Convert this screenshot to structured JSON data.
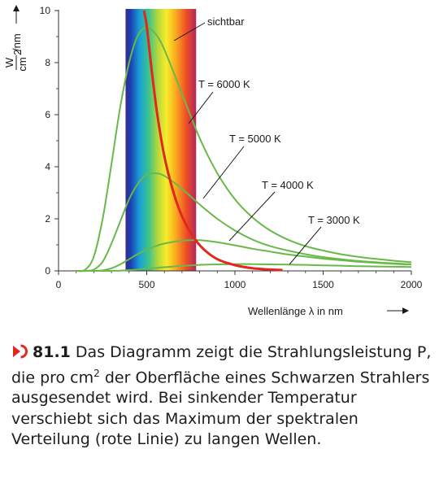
{
  "chart_data": {
    "type": "line",
    "x": [
      100,
      150,
      200,
      250,
      300,
      350,
      400,
      450,
      500,
      550,
      600,
      700,
      800,
      900,
      1000,
      1100,
      1200,
      1300,
      1400,
      1500,
      1600,
      1700,
      1800,
      1900,
      2000
    ],
    "series": [
      {
        "name": "T = 6000 K",
        "values": [
          0,
          0.04,
          0.55,
          2.0,
          4.1,
          6.3,
          8.0,
          9.05,
          9.35,
          9.1,
          8.5,
          6.8,
          5.1,
          3.75,
          2.75,
          2.05,
          1.55,
          1.2,
          0.95,
          0.78,
          0.64,
          0.54,
          0.46,
          0.39,
          0.33
        ]
      },
      {
        "name": "T = 5000 K",
        "values": [
          0,
          0,
          0.05,
          0.35,
          1.05,
          1.9,
          2.75,
          3.35,
          3.7,
          3.75,
          3.65,
          3.15,
          2.55,
          2.0,
          1.55,
          1.2,
          0.95,
          0.78,
          0.64,
          0.53,
          0.45,
          0.38,
          0.33,
          0.29,
          0.25
        ]
      },
      {
        "name": "T = 4000 K",
        "values": [
          0,
          0,
          0,
          0.02,
          0.1,
          0.25,
          0.45,
          0.65,
          0.82,
          0.95,
          1.05,
          1.16,
          1.18,
          1.1,
          0.98,
          0.85,
          0.74,
          0.63,
          0.55,
          0.47,
          0.41,
          0.35,
          0.31,
          0.27,
          0.24
        ]
      },
      {
        "name": "T = 3000 K",
        "values": [
          0,
          0,
          0,
          0,
          0,
          0.01,
          0.03,
          0.05,
          0.08,
          0.11,
          0.14,
          0.19,
          0.23,
          0.25,
          0.26,
          0.26,
          0.25,
          0.24,
          0.23,
          0.21,
          0.2,
          0.18,
          0.17,
          0.16,
          0.15
        ]
      }
    ],
    "max_curve": {
      "x": [
        484,
        500,
        530,
        560,
        600,
        650,
        700,
        760,
        820,
        900,
        1000,
        1100,
        1200,
        1270
      ],
      "values": [
        10,
        9.4,
        7.6,
        6.0,
        4.4,
        3.05,
        2.1,
        1.35,
        0.85,
        0.45,
        0.22,
        0.1,
        0.05,
        0.03
      ]
    },
    "visible_band": {
      "from": 380,
      "to": 780,
      "label": "sichtbar"
    },
    "xlim": [
      0,
      2000
    ],
    "ylim": [
      0,
      10
    ],
    "xticks": [
      0,
      500,
      1000,
      1500,
      2000
    ],
    "yticks": [
      0,
      2,
      4,
      6,
      8,
      10
    ],
    "xlabel": "Wellenlänge λ in nm",
    "ylabel_num": "W",
    "ylabel_den": "cm",
    "ylabel_exp": "2",
    "ylabel_rest": "/nm",
    "label_texts": [
      "T = 6000 K",
      "T = 5000 K",
      "T = 4000 K",
      "T = 3000 K"
    ],
    "curve_colors": {
      "planck": "#6ab84a",
      "maximum": "#e2271d"
    },
    "grid": false,
    "legend": "none"
  },
  "caption": {
    "icon": "play-arrow-circle-icon",
    "icon_color": "#e2271d",
    "number": "81.1",
    "text_before": " Das Diagramm zeigt die Strahlungs­leistung P, die pro cm",
    "superscript": "2",
    "text_after": " der Oberfläche eines Schwarzen Strahlers ausgesendet wird. Bei sinkender Temperatur verschiebt sich das Maximum der spektralen Verteilung (rote Linie) zu langen Wellen."
  }
}
